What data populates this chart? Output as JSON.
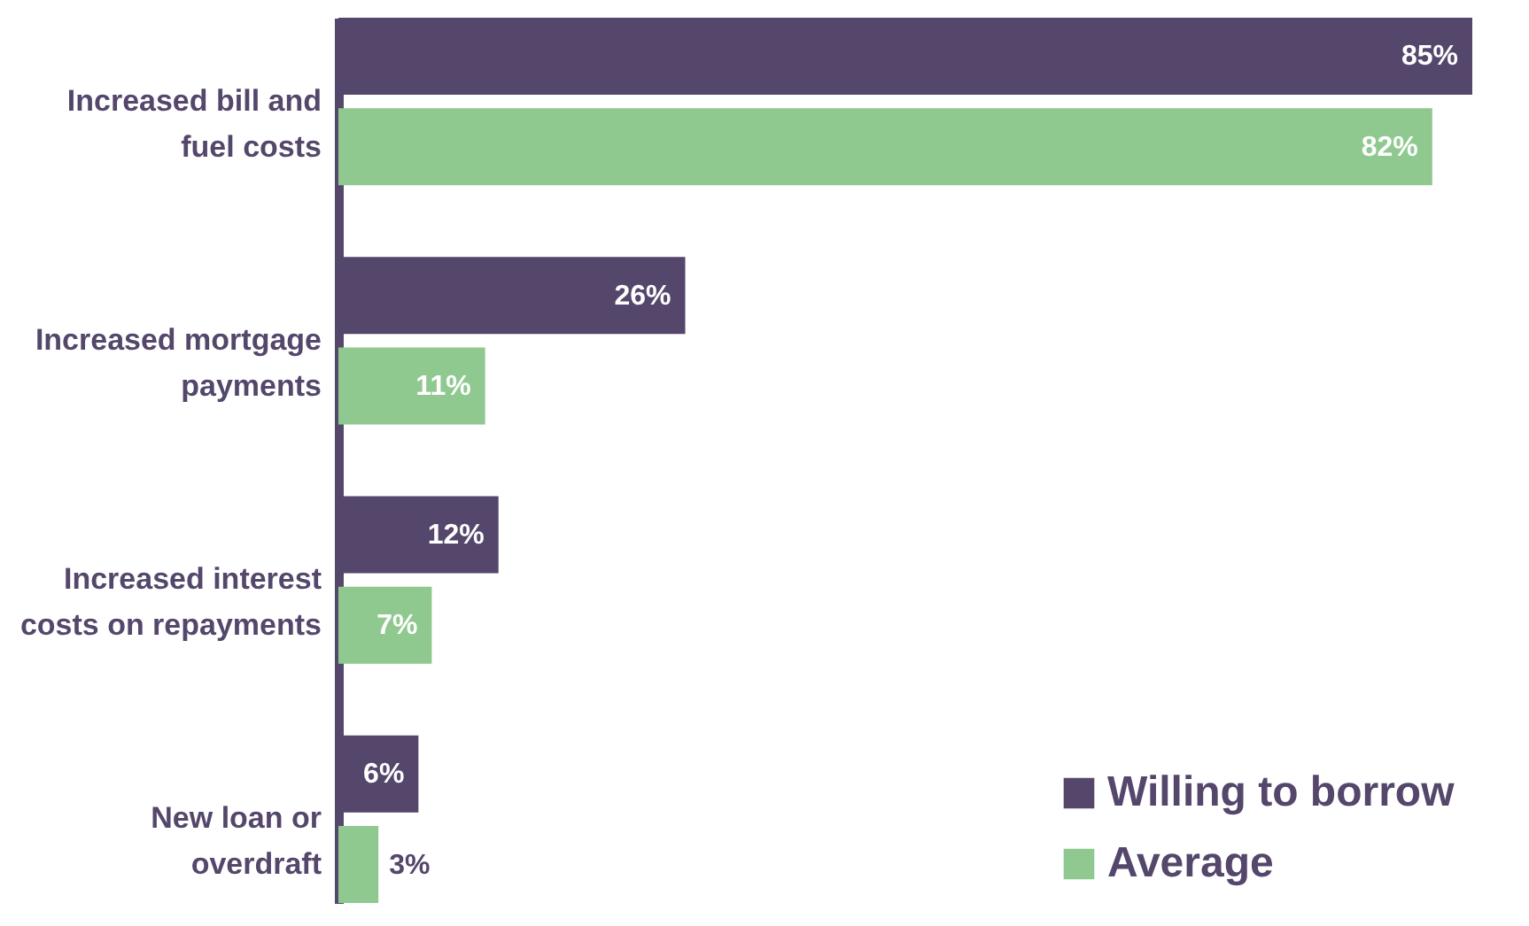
{
  "chart_data": {
    "type": "bar",
    "orientation": "horizontal",
    "categories": [
      "Increased bill and fuel costs",
      "Increased mortgage payments",
      "Increased interest costs on repayments",
      "New loan or overdraft"
    ],
    "series": [
      {
        "name": "Willing to borrow",
        "color": "#54476b",
        "values": [
          85,
          26,
          12,
          6
        ],
        "value_labels": [
          "85%",
          "26%",
          "12%",
          "6%"
        ]
      },
      {
        "name": "Average",
        "color": "#8fc98f",
        "values": [
          82,
          11,
          7,
          3
        ],
        "value_labels": [
          "82%",
          "11%",
          "7%",
          "3%"
        ]
      }
    ],
    "legend": "bottom right",
    "grid": false
  }
}
